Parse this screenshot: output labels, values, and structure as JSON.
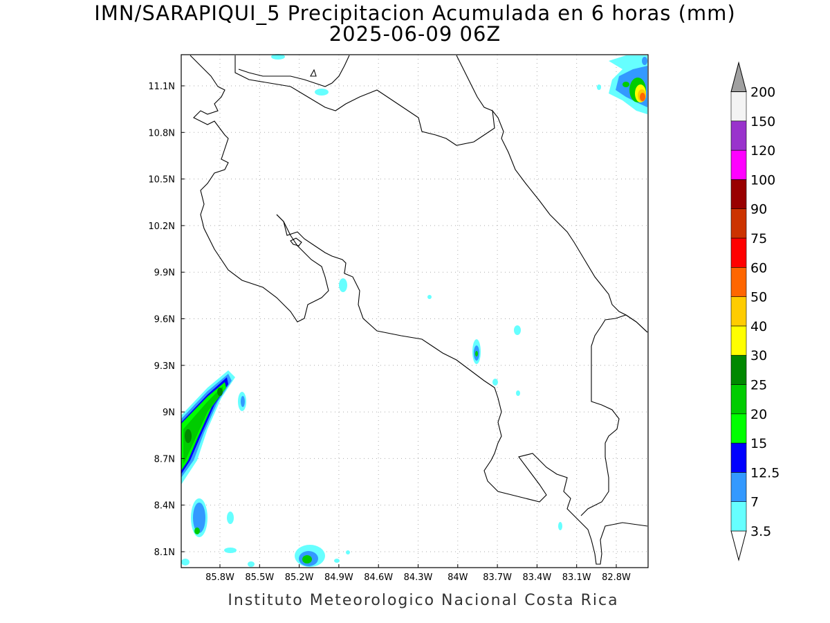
{
  "title_line1": "IMN/SARAPIQUI_5 Precipitacion Acumulada en 6 horas (mm)",
  "title_line2": "2025-06-09 06Z",
  "footer": "Instituto Meteorologico Nacional Costa Rica",
  "map": {
    "lon_range": [
      -86.0,
      -83.0
    ],
    "lat_range": [
      8.0,
      11.3
    ],
    "lon_ticks": [
      "85.8W",
      "85.5W",
      "85.2W",
      "84.9W",
      "84.6W",
      "84.3W",
      "84W",
      "83.7W",
      "83.4W",
      "83.1W",
      "82.8W"
    ],
    "lat_ticks": [
      "11.1N",
      "10.8N",
      "10.5N",
      "10.2N",
      "9.9N",
      "9.6N",
      "9.3N",
      "9N",
      "8.7N",
      "8.4N",
      "8.1N"
    ],
    "grid": true
  },
  "colorbar": {
    "labels": [
      "3.5",
      "7",
      "12.5",
      "15",
      "20",
      "25",
      "30",
      "40",
      "50",
      "60",
      "75",
      "90",
      "100",
      "120",
      "150",
      "200"
    ],
    "colors": [
      "#66ffff",
      "#3399ff",
      "#0000ff",
      "#00ff00",
      "#00cc00",
      "#008800",
      "#ffff00",
      "#ffcc00",
      "#ff6600",
      "#ff0000",
      "#cc3300",
      "#990000",
      "#ff00ff",
      "#9933cc",
      "#f4f4f4",
      "#a0a0a0"
    ]
  }
}
